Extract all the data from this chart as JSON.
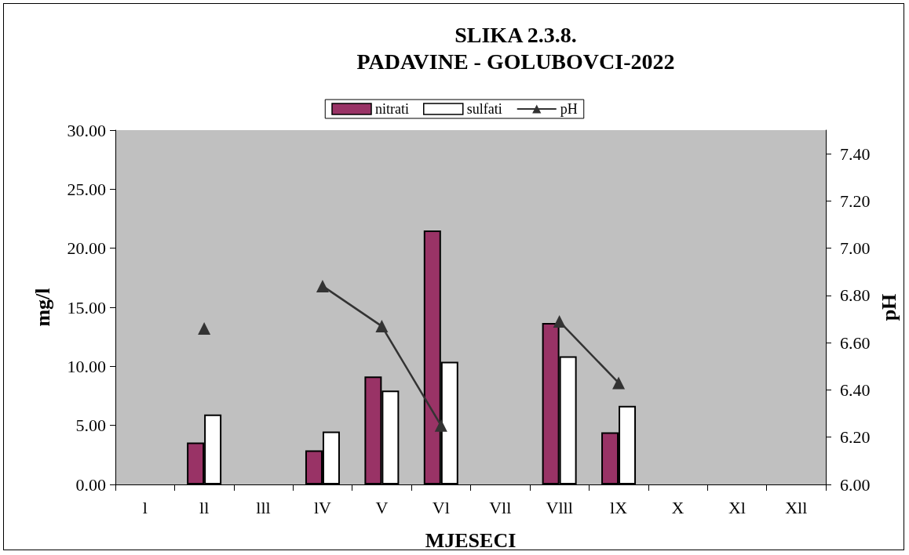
{
  "chart_data": {
    "type": "bar",
    "title": "SLIKA 2.3.8.\nPADAVINE - GOLUBOVCI-2022",
    "xlabel": "MJESECI",
    "ylabel": "mg/l",
    "y2label": "pH",
    "categories": [
      "l",
      "ll",
      "lll",
      "lV",
      "V",
      "Vl",
      "Vll",
      "Vlll",
      "lX",
      "X",
      "Xl",
      "Xll"
    ],
    "series": [
      {
        "name": "nitrati",
        "color": "#993366",
        "values": [
          null,
          3.55,
          null,
          2.88,
          9.14,
          21.5,
          null,
          13.68,
          4.42,
          null,
          null,
          null
        ]
      },
      {
        "name": "sulfati",
        "color": "#ffffff",
        "values": [
          null,
          5.93,
          null,
          4.48,
          7.95,
          10.38,
          null,
          10.86,
          6.65,
          null,
          null,
          null
        ]
      },
      {
        "name": "pH",
        "type": "line",
        "axis": "y2",
        "color": "#333333",
        "marker": "triangle",
        "values": [
          null,
          6.66,
          null,
          6.84,
          6.67,
          6.25,
          null,
          6.69,
          6.43,
          null,
          null,
          null
        ]
      }
    ],
    "ylim": [
      0,
      30
    ],
    "yticks": [
      {
        "value": 0,
        "label": "0.00"
      },
      {
        "value": 5,
        "label": "5.00"
      },
      {
        "value": 10,
        "label": "10.00"
      },
      {
        "value": 15,
        "label": "15.00"
      },
      {
        "value": 20,
        "label": "20.00"
      },
      {
        "value": 25,
        "label": "25.00"
      },
      {
        "value": 30,
        "label": "30.00"
      }
    ],
    "y2lim": [
      6,
      7.5
    ],
    "y2ticks": [
      {
        "value": 6,
        "label": "6.00"
      },
      {
        "value": 6.2,
        "label": "6.20"
      },
      {
        "value": 6.4,
        "label": "6.40"
      },
      {
        "value": 6.6,
        "label": "6.60"
      },
      {
        "value": 6.8,
        "label": "6.80"
      },
      {
        "value": 7,
        "label": "7.00"
      },
      {
        "value": 7.2,
        "label": "7.20"
      },
      {
        "value": 7.4,
        "label": "7.40"
      }
    ],
    "grid": false,
    "legend": "top"
  }
}
